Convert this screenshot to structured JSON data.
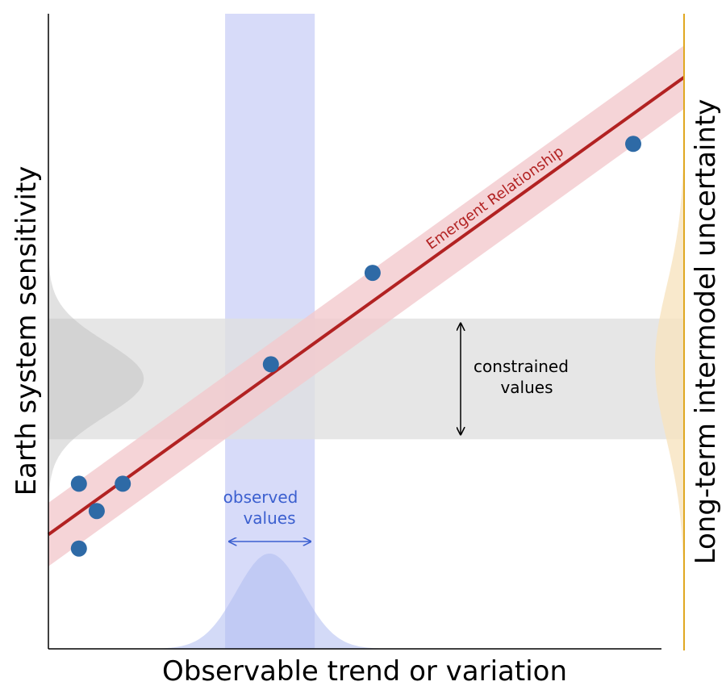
{
  "chart_data": {
    "type": "scatter",
    "xlabel": "Observable trend or variation",
    "ylabel": "Earth system sensitivity",
    "right_label": "Long-term intermodel uncertainty",
    "xlim": [
      0,
      100
    ],
    "ylim": [
      0,
      100
    ],
    "grid": false,
    "legend": "none",
    "points": [
      {
        "x": 4.8,
        "y": 26.0
      },
      {
        "x": 7.6,
        "y": 21.7
      },
      {
        "x": 11.7,
        "y": 26.0
      },
      {
        "x": 4.8,
        "y": 15.8
      },
      {
        "x": 35.0,
        "y": 44.8
      },
      {
        "x": 51.0,
        "y": 59.2
      },
      {
        "x": 92.0,
        "y": 79.5
      }
    ],
    "fit_line": {
      "label": "Emergent Relationship",
      "x": [
        0,
        100
      ],
      "y": [
        18.0,
        90.0
      ],
      "band": 5.0
    },
    "observed_range": {
      "label": "observed values",
      "x": [
        27.8,
        41.9
      ]
    },
    "constrained_range": {
      "label": "constrained values",
      "y": [
        33.0,
        52.0
      ]
    },
    "observed_pdf": {
      "mean": 34.8,
      "sd": 5.2,
      "peak": 15.0
    },
    "constrained_pdf": {
      "mean": 42.5,
      "sd": 5.8,
      "peak": 15.0
    },
    "intermodel_pdf": {
      "mean": 45.0,
      "sd": 12.0
    },
    "colors": {
      "points": "#2e6aa6",
      "line": "#b22222",
      "band": "#f2c9cd",
      "observed": "#c9cff7",
      "observed_text": "#3b5fcf",
      "constrained": "#e0e0e0",
      "right_axis": "#e0a822",
      "right_fill": "#f7e3bf"
    }
  }
}
